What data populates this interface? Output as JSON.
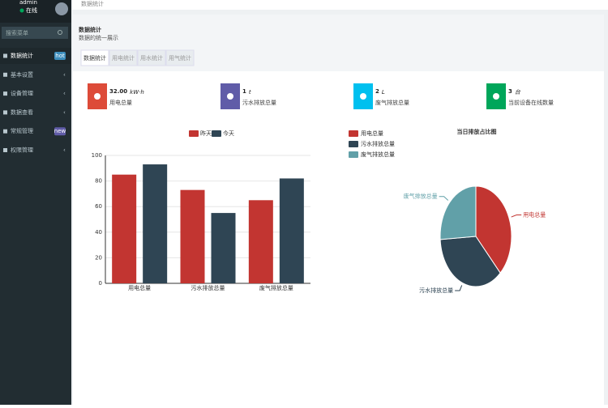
{
  "sidebar": {
    "user": "admin",
    "status": "在线",
    "search": "搜索菜单",
    "menu": [
      {
        "label": "数据统计",
        "badge": "hot"
      },
      {
        "label": "基本设置"
      },
      {
        "label": "设备管理"
      },
      {
        "label": "数据查看"
      },
      {
        "label": "常规管理",
        "badge": "new"
      },
      {
        "label": "权限管理"
      }
    ]
  },
  "header": {
    "breadcrumb": "数据统计",
    "title": "数据统计",
    "subtitle": "数据的统一展示"
  },
  "tabs": [
    "数据统计",
    "用电统计",
    "用水统计",
    "用气统计"
  ],
  "stats": [
    {
      "value": "32.00",
      "unit": "kW·h",
      "label": "用电总量"
    },
    {
      "value": "1",
      "unit": "t",
      "label": "污水排放总量"
    },
    {
      "value": "2",
      "unit": "L",
      "label": "废气排放总量"
    },
    {
      "value": "3",
      "unit": "台",
      "label": "当前设备在线数量"
    }
  ],
  "chart_data": [
    {
      "type": "bar",
      "categories": [
        "用电总量",
        "污水排放总量",
        "废气排放总量"
      ],
      "series": [
        {
          "name": "昨天",
          "color": "#c23531",
          "values": [
            85,
            73,
            65
          ]
        },
        {
          "name": "今天",
          "color": "#2f4554",
          "values": [
            93,
            55,
            82
          ]
        }
      ],
      "ylim": [
        0,
        100
      ],
      "yticks": [
        0,
        20,
        40,
        60,
        80,
        100
      ],
      "grid": true
    },
    {
      "type": "pie",
      "title": "当日排放占比图",
      "categories": [
        "用电总量",
        "污水排放总量",
        "废气排放总量"
      ],
      "values": [
        38,
        36,
        26
      ],
      "colors": [
        "#c23531",
        "#2f4554",
        "#61a0a8"
      ]
    }
  ]
}
